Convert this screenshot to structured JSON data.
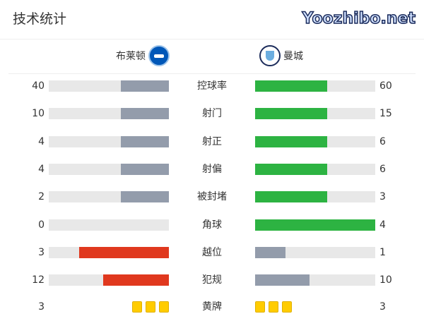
{
  "title": "技术统计",
  "home": {
    "name": "布莱顿",
    "crest": "brighton-crest"
  },
  "away": {
    "name": "曼城",
    "crest": "man-city-crest"
  },
  "colors": {
    "higher_home": "#e0381e",
    "higher_away": "#2db342",
    "lower": "#939cab",
    "track": "#e8e8e8",
    "card": "#ffcc00"
  },
  "stats": [
    {
      "label": "控球率",
      "home": "40",
      "away": "60"
    },
    {
      "label": "射门",
      "home": "10",
      "away": "15"
    },
    {
      "label": "射正",
      "home": "4",
      "away": "6"
    },
    {
      "label": "射偏",
      "home": "4",
      "away": "6"
    },
    {
      "label": "被封堵",
      "home": "2",
      "away": "3"
    },
    {
      "label": "角球",
      "home": "0",
      "away": "4"
    },
    {
      "label": "越位",
      "home": "3",
      "away": "1"
    },
    {
      "label": "犯规",
      "home": "12",
      "away": "10"
    }
  ],
  "yellow": {
    "label": "黄牌",
    "home": "3",
    "away": "3"
  },
  "watermark": "Yoozhibo.net"
}
